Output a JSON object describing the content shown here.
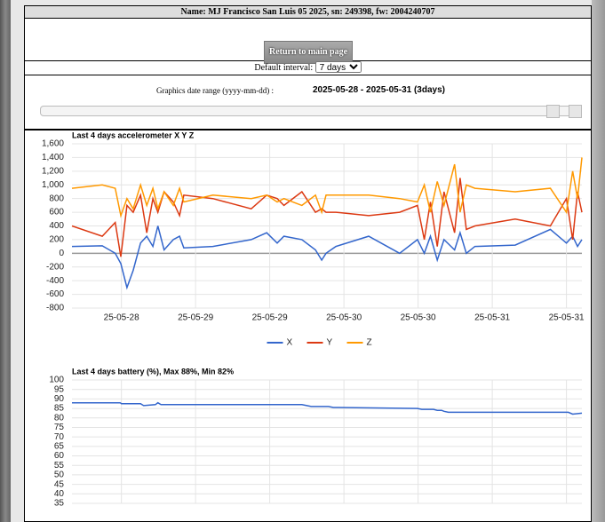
{
  "header": {
    "name": "Name: MJ Francisco San Luis 05 2025, sn: 249398, fw: 2004240707"
  },
  "button": {
    "label": "Return to main page"
  },
  "interval": {
    "label": "Default interval:",
    "selected": "7 days"
  },
  "date_range": {
    "label": "Graphics date range (yyyy-mm-dd) :",
    "value": "2025-05-28 - 2025-05-31 (3days)"
  },
  "chart_data": [
    {
      "type": "line",
      "title": "Last 4 days accelerometer X Y Z",
      "x": [
        4.0,
        8.9,
        11.0,
        11.9,
        12.9,
        13.9,
        15.1,
        16.1,
        17.1,
        17.9,
        18.9,
        20.4,
        21.4,
        22.1,
        26.8,
        33.0,
        35.5,
        37.2,
        38.3,
        41.2,
        43.4,
        44.4,
        45.1,
        46.7,
        52.0,
        57.0,
        59.9,
        61.0,
        62.0,
        63.1,
        64.2,
        65.9,
        66.8,
        67.8,
        69.2,
        75.7,
        81.4,
        84.0,
        85.0,
        85.8,
        86.5
      ],
      "series": [
        {
          "name": "X",
          "color": "#3366cc",
          "values": [
            100,
            110,
            0,
            -150,
            -500,
            -250,
            150,
            250,
            100,
            400,
            50,
            200,
            250,
            80,
            100,
            200,
            300,
            150,
            250,
            200,
            50,
            -100,
            0,
            100,
            250,
            0,
            200,
            0,
            250,
            -100,
            200,
            50,
            300,
            0,
            100,
            120,
            350,
            150,
            250,
            100,
            200
          ]
        },
        {
          "name": "Y",
          "color": "#dc3912",
          "values": [
            400,
            250,
            450,
            -50,
            700,
            600,
            850,
            300,
            800,
            600,
            900,
            750,
            550,
            850,
            800,
            650,
            850,
            800,
            700,
            900,
            600,
            650,
            600,
            600,
            550,
            600,
            700,
            200,
            750,
            100,
            900,
            300,
            1100,
            350,
            400,
            500,
            400,
            800,
            200,
            900,
            600
          ]
        },
        {
          "name": "Z",
          "color": "#ff9900",
          "values": [
            950,
            1000,
            950,
            550,
            800,
            650,
            1000,
            700,
            950,
            650,
            900,
            700,
            950,
            750,
            850,
            800,
            850,
            750,
            800,
            700,
            850,
            600,
            850,
            850,
            850,
            800,
            750,
            1000,
            600,
            1050,
            700,
            1300,
            600,
            1000,
            950,
            900,
            950,
            600,
            1200,
            800,
            1400
          ]
        }
      ],
      "xlim": [
        4,
        86.5
      ],
      "xticks": [
        {
          "value": 12,
          "label": "25-05-28"
        },
        {
          "value": 24,
          "label": "25-05-29"
        },
        {
          "value": 36,
          "label": "25-05-29"
        },
        {
          "value": 48,
          "label": "25-05-30"
        },
        {
          "value": 60,
          "label": "25-05-30"
        },
        {
          "value": 72,
          "label": "25-05-31"
        },
        {
          "value": 84,
          "label": "25-05-31"
        }
      ],
      "ylim": [
        -800,
        1600
      ],
      "yticks": [
        -800,
        -600,
        -400,
        -200,
        0,
        200,
        400,
        600,
        800,
        {
          "value": 1000,
          "label": "1,000"
        },
        {
          "value": 1200,
          "label": "1,200"
        },
        {
          "value": 1400,
          "label": "1,400"
        },
        {
          "value": 1600,
          "label": "1,600"
        }
      ],
      "grid": true,
      "legend": "bottom"
    },
    {
      "type": "line",
      "title": "Last 4 days battery (%), Max 88%, Min 82%",
      "x": [
        4.0,
        11.8,
        12.0,
        15.1,
        15.6,
        17.5,
        17.9,
        18.4,
        41.2,
        42.0,
        42.7,
        45.5,
        46.3,
        47.0,
        59.9,
        60.6,
        62.5,
        63.1,
        63.8,
        64.2,
        64.9,
        84.3,
        85.0,
        86.5
      ],
      "series": [
        {
          "name": "battery",
          "color": "#3366cc",
          "values": [
            88,
            88,
            87.5,
            87.5,
            86.5,
            87,
            88,
            87,
            87,
            86.5,
            86,
            86,
            85.5,
            85.5,
            85,
            84.5,
            84.5,
            84,
            84,
            83.5,
            83,
            83,
            82,
            82.5
          ]
        }
      ],
      "xlim": [
        4,
        86.5
      ],
      "xticks": [
        12,
        24,
        36,
        48,
        60,
        72,
        84
      ],
      "ylim": [
        35,
        100
      ],
      "yticks": [
        35,
        40,
        45,
        50,
        55,
        60,
        65,
        70,
        75,
        80,
        85,
        90,
        95,
        100
      ],
      "grid": true
    }
  ]
}
